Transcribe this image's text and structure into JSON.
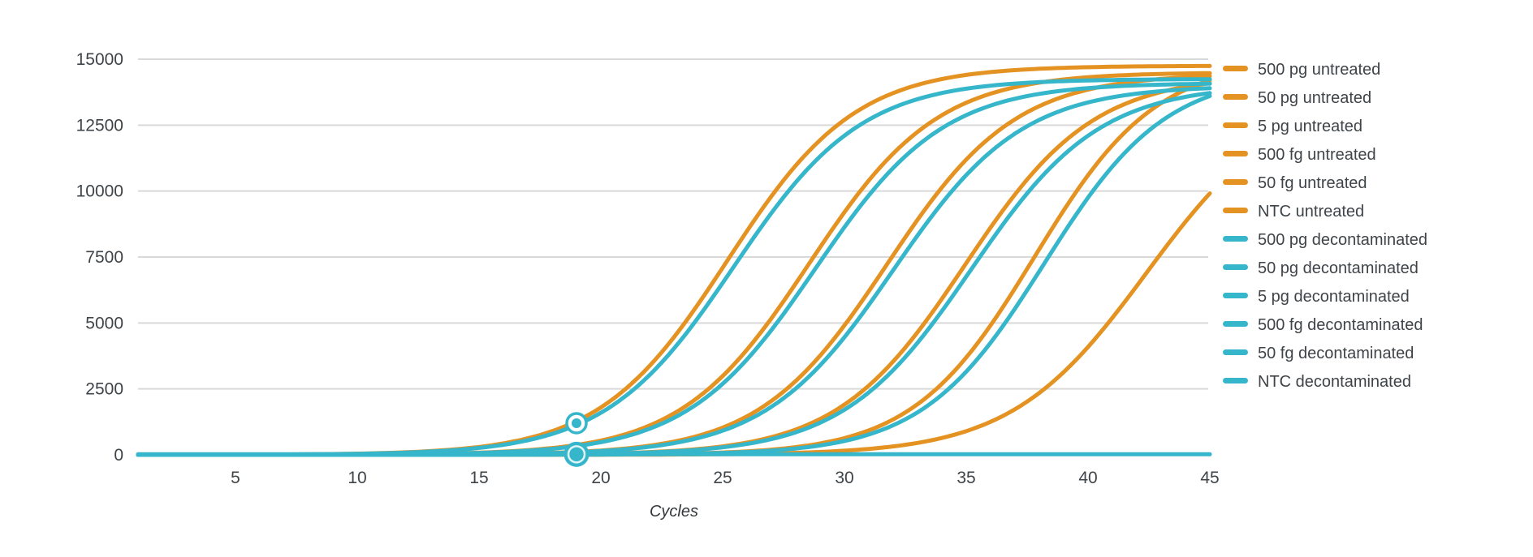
{
  "chart_data": {
    "type": "line",
    "title": "",
    "xlabel": "Cycles",
    "ylabel": "",
    "x_range": [
      1,
      45
    ],
    "xticks": [
      5,
      10,
      15,
      20,
      25,
      30,
      35,
      40,
      45
    ],
    "yticks": [
      0,
      2500,
      5000,
      7500,
      10000,
      12500,
      15000
    ],
    "ylim": [
      0,
      15500
    ],
    "grid": true,
    "legend_position": "right",
    "colors": {
      "untreated": "#E49323",
      "decontaminated": "#36B6CA"
    },
    "series": [
      {
        "name": "500 pg untreated",
        "color": "#E49323",
        "model": "sigmoid",
        "midpoint_cycle": 25.2,
        "slope": 0.38,
        "plateau": 14750,
        "value_at_45": 14740
      },
      {
        "name": "50 pg untreated",
        "color": "#E49323",
        "model": "sigmoid",
        "midpoint_cycle": 28.55,
        "slope": 0.38,
        "plateau": 14500,
        "value_at_45": 14470
      },
      {
        "name": "5 pg untreated",
        "color": "#E49323",
        "model": "sigmoid",
        "midpoint_cycle": 31.75,
        "slope": 0.38,
        "plateau": 14450,
        "value_at_45": 14360
      },
      {
        "name": "500 fg untreated",
        "color": "#E49323",
        "model": "sigmoid",
        "midpoint_cycle": 34.95,
        "slope": 0.38,
        "plateau": 14400,
        "value_at_45": 14090
      },
      {
        "name": "50 fg untreated",
        "color": "#E49323",
        "model": "sigmoid",
        "midpoint_cycle": 37.8,
        "slope": 0.4,
        "plateau": 15000,
        "value_at_45": 14200
      },
      {
        "name": "NTC untreated",
        "color": "#E49323",
        "model": "sigmoid",
        "midpoint_cycle": 42.4,
        "slope": 0.36,
        "plateau": 13800,
        "value_at_45": 9910
      },
      {
        "name": "500 pg decontaminated",
        "color": "#36B6CA",
        "model": "sigmoid",
        "midpoint_cycle": 25.45,
        "slope": 0.38,
        "plateau": 14250,
        "value_at_45": 14240
      },
      {
        "name": "50 pg decontaminated",
        "color": "#36B6CA",
        "model": "sigmoid",
        "midpoint_cycle": 28.8,
        "slope": 0.38,
        "plateau": 14100,
        "value_at_45": 14070
      },
      {
        "name": "5 pg decontaminated",
        "color": "#36B6CA",
        "model": "sigmoid",
        "midpoint_cycle": 32.0,
        "slope": 0.38,
        "plateau": 14000,
        "value_at_45": 13900
      },
      {
        "name": "500 fg decontaminated",
        "color": "#36B6CA",
        "model": "sigmoid",
        "midpoint_cycle": 35.2,
        "slope": 0.38,
        "plateau": 14050,
        "value_at_45": 13720
      },
      {
        "name": "50 fg decontaminated",
        "color": "#36B6CA",
        "model": "sigmoid",
        "midpoint_cycle": 38.2,
        "slope": 0.4,
        "plateau": 14500,
        "value_at_45": 13600
      },
      {
        "name": "NTC decontaminated",
        "color": "#36B6CA",
        "model": "flat",
        "baseline": 20,
        "value_at_45": 20
      }
    ],
    "markers": [
      {
        "shape": "ring-dot",
        "cycle": 19,
        "value": 1200,
        "color": "#36B6CA",
        "note": "Cq indicator on 500 pg curve"
      },
      {
        "shape": "filled-ring",
        "cycle": 19,
        "value": 20,
        "color": "#36B6CA",
        "note": "Cq indicator on baseline"
      }
    ]
  }
}
